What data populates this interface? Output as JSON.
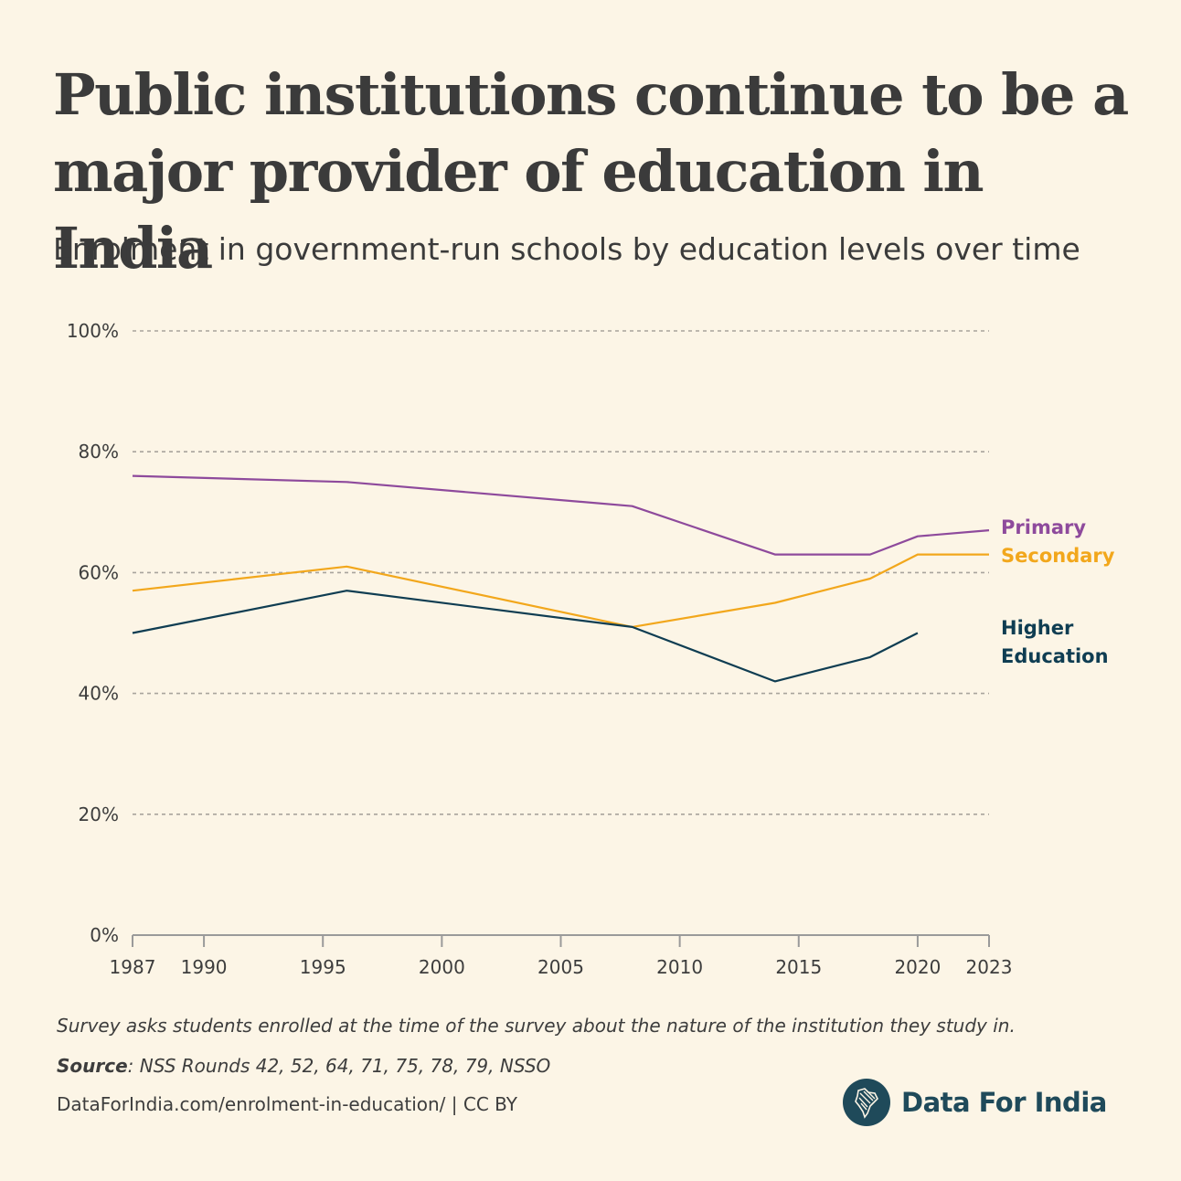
{
  "title": "Public institutions continue to be a major provider of education in India",
  "subtitle": "Enrolment in government-run schools by education levels over time",
  "chart_data": {
    "type": "line",
    "title": "Public institutions continue to be a major provider of education in India",
    "subtitle": "Enrolment in government-run schools by education levels over time",
    "xlim": [
      1987,
      2023
    ],
    "ylim": [
      0,
      100
    ],
    "x_ticks": [
      1987,
      1990,
      1995,
      2000,
      2005,
      2010,
      2015,
      2020,
      2023
    ],
    "y_ticks": [
      0,
      20,
      40,
      60,
      80,
      100
    ],
    "y_tick_labels": [
      "0%",
      "20%",
      "40%",
      "60%",
      "80%",
      "100%"
    ],
    "grid": "horizontal dotted",
    "legend": "direct labels at right end of lines",
    "series": [
      {
        "name": "Primary",
        "color": "#8e4a9c",
        "points": [
          [
            1987,
            76
          ],
          [
            1996,
            75
          ],
          [
            2008,
            71
          ],
          [
            2014,
            63
          ],
          [
            2018,
            63
          ],
          [
            2020,
            66
          ],
          [
            2023,
            67
          ]
        ]
      },
      {
        "name": "Secondary",
        "color": "#f2a71c",
        "points": [
          [
            1987,
            57
          ],
          [
            1996,
            61
          ],
          [
            2008,
            51
          ],
          [
            2014,
            55
          ],
          [
            2018,
            59
          ],
          [
            2020,
            63
          ],
          [
            2023,
            63
          ]
        ]
      },
      {
        "name": "Higher Education",
        "label_lines": [
          "Higher",
          "Education"
        ],
        "color": "#0f3d52",
        "points": [
          [
            1987,
            50
          ],
          [
            1996,
            57
          ],
          [
            2008,
            51
          ],
          [
            2014,
            42
          ],
          [
            2018,
            46
          ],
          [
            2020,
            50
          ]
        ]
      }
    ]
  },
  "footer": {
    "note": "Survey asks students enrolled at the time of the survey about the nature of the institution they study in.",
    "source_label": "Source",
    "source_text": ": NSS Rounds 42, 52, 64, 71, 75, 78, 79, NSSO",
    "link": "DataForIndia.com/enrolment-in-education/  |  CC BY",
    "brand": "Data For India"
  },
  "colors": {
    "background": "#fcf5e6",
    "brand": "#1f4a5a"
  }
}
